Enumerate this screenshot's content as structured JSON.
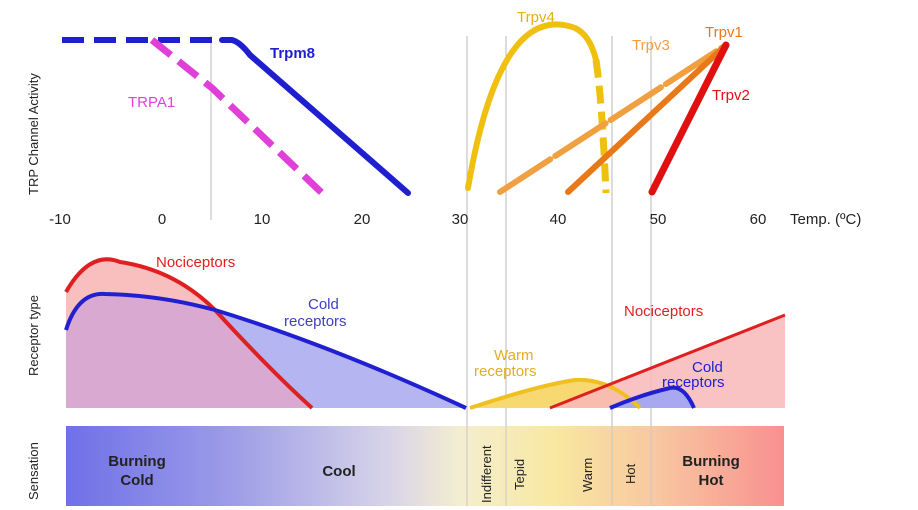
{
  "top_panel": {
    "ylabel": "TRP Channel Activity",
    "xlabel": "Temp. (ºC)",
    "ticks": [
      -10,
      0,
      10,
      20,
      30,
      40,
      50,
      60
    ],
    "channels": [
      {
        "name": "Trpm8",
        "color": "#1f1fd0",
        "onset_temp": 7,
        "end_temp": 25,
        "dashed_from": -10
      },
      {
        "name": "TRPA1",
        "color": "#e040d8",
        "onset_temp": -1,
        "end_temp": 17,
        "dashed": true
      },
      {
        "name": "Trpv4",
        "color": "#f0c010",
        "start_temp": 31,
        "peak_temp": 42,
        "end_temp": 45
      },
      {
        "name": "Trpv3",
        "color": "#f0a040",
        "start_temp": 34,
        "peak_temp": 57
      },
      {
        "name": "Trpv1",
        "color": "#e87818",
        "start_temp": 41,
        "peak_temp": 57
      },
      {
        "name": "Trpv2",
        "color": "#e01010",
        "start_temp": 49,
        "peak_temp": 57
      }
    ],
    "reference_lines": [
      5,
      30.5,
      34,
      45,
      49
    ]
  },
  "middle_panel": {
    "ylabel": "Receptor type",
    "labels": {
      "nociceptors_cold": "Nociceptors",
      "cold_receptors_line1": "Cold",
      "cold_receptors_line2": "receptors",
      "warm_receptors_line1": "Warm",
      "warm_receptors_line2": "receptors",
      "nociceptors_hot": "Nociceptors",
      "cold_receptors_hot_line1": "Cold",
      "cold_receptors_hot_line2": "receptors"
    },
    "colors": {
      "nociceptor": "#e02020",
      "nociceptor_fill": "#f8b8b8",
      "cold": "#2020d0",
      "cold_fill": "#a8a8f0",
      "warm": "#f0c020",
      "warm_fill": "#f8d870"
    }
  },
  "bottom_panel": {
    "ylabel": "Sensation",
    "segments": [
      {
        "label_line1": "Burning",
        "label_line2": "Cold"
      },
      {
        "label_line1": "Cool",
        "label_line2": ""
      },
      {
        "label_line1": "Indifferent",
        "vertical": true
      },
      {
        "label_line1": "Tepid",
        "vertical": true
      },
      {
        "label_line1": "Warm",
        "vertical": true
      },
      {
        "label_line1": "Hot",
        "vertical": true
      },
      {
        "label_line1": "Burning",
        "label_line2": "Hot"
      }
    ]
  }
}
